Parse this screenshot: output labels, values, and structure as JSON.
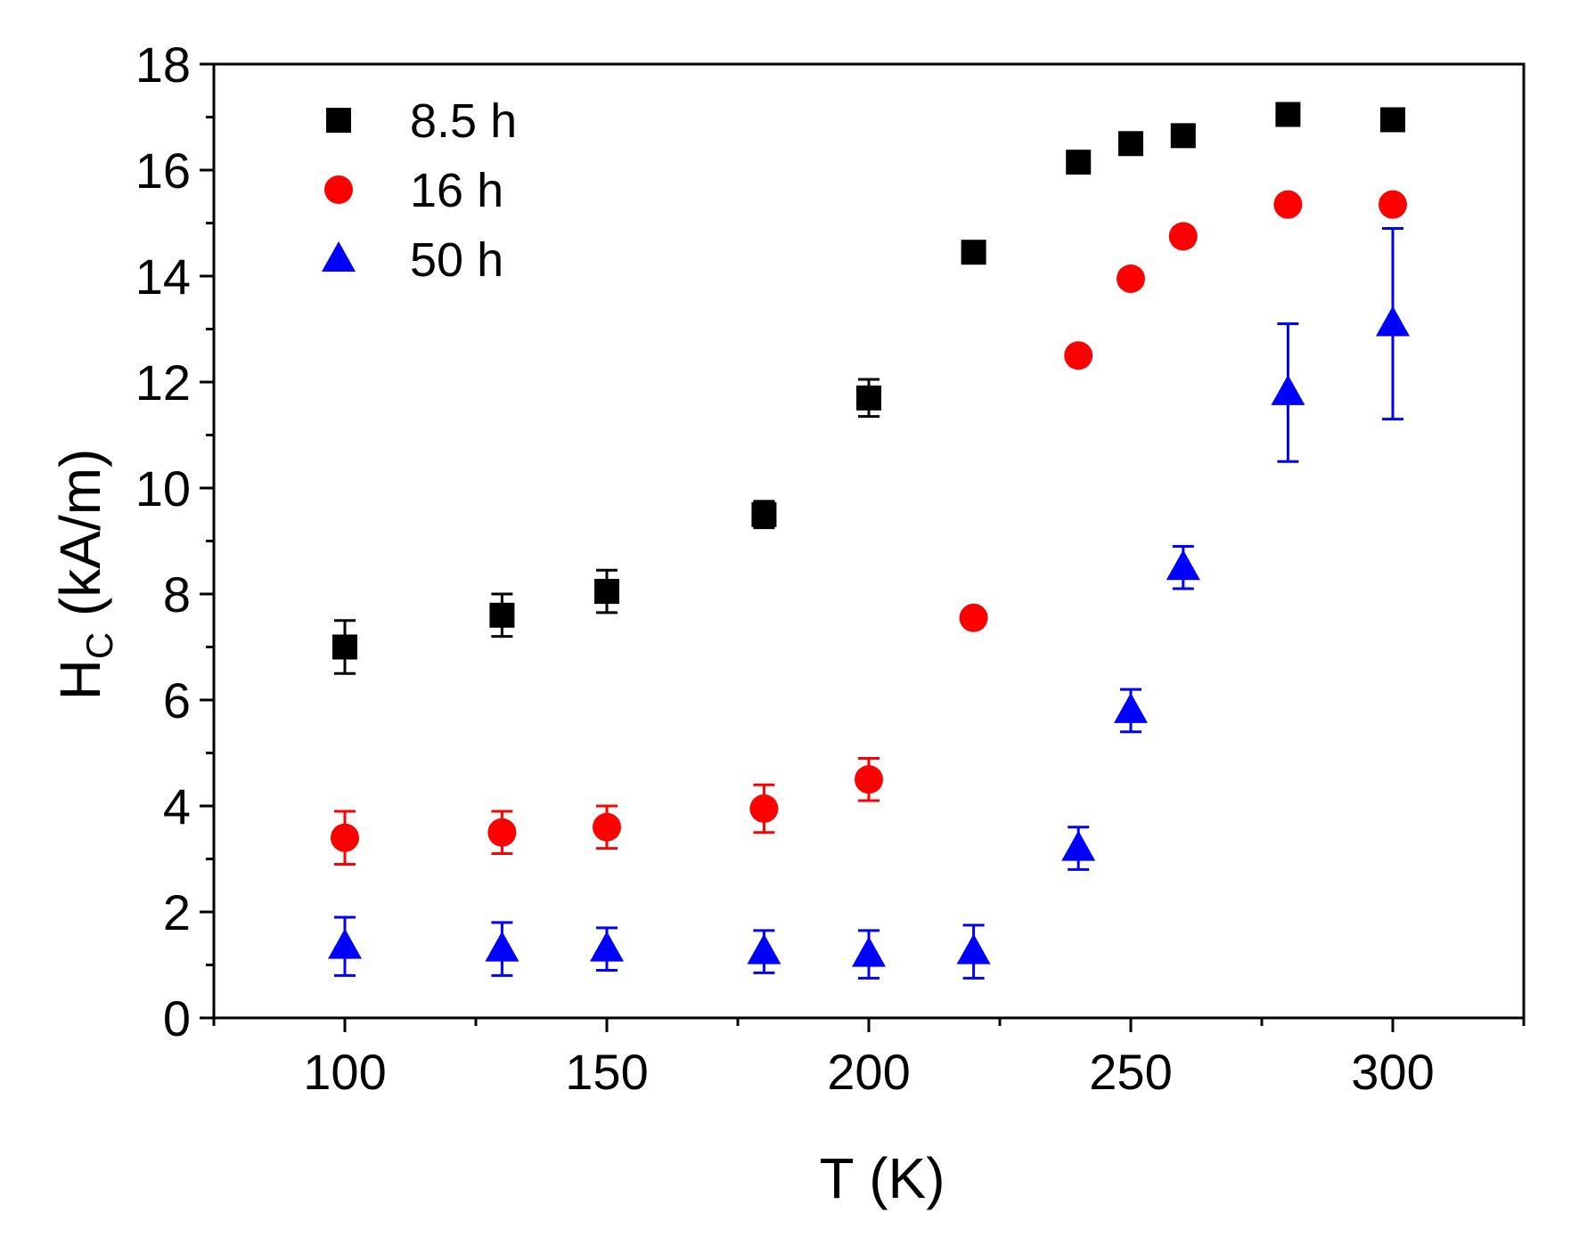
{
  "chart_data": {
    "type": "scatter",
    "xlabel": "T (K)",
    "ylabel_main": "H",
    "ylabel_sub": "C",
    "ylabel_units": " (kA/m)",
    "xlim": [
      75,
      325
    ],
    "ylim": [
      0,
      18
    ],
    "x_ticks": [
      100,
      150,
      200,
      250,
      300
    ],
    "x_minor_ticks": [
      75,
      125,
      175,
      225,
      275,
      325
    ],
    "y_ticks": [
      0,
      2,
      4,
      6,
      8,
      10,
      12,
      14,
      16,
      18
    ],
    "y_minor_ticks": [
      1,
      3,
      5,
      7,
      9,
      11,
      13,
      15,
      17
    ],
    "legend_position": "top-left",
    "series": [
      {
        "name": "8.5 h",
        "marker": "square",
        "color": "#000000",
        "points": [
          {
            "x": 100,
            "y": 7.0,
            "err": 0.5
          },
          {
            "x": 130,
            "y": 7.6,
            "err": 0.4
          },
          {
            "x": 150,
            "y": 8.05,
            "err": 0.4
          },
          {
            "x": 180,
            "y": 9.5,
            "err": 0.25
          },
          {
            "x": 200,
            "y": 11.7,
            "err": 0.35
          },
          {
            "x": 220,
            "y": 14.45,
            "err": 0.15
          },
          {
            "x": 240,
            "y": 16.15,
            "err": 0.15
          },
          {
            "x": 250,
            "y": 16.5,
            "err": 0.15
          },
          {
            "x": 260,
            "y": 16.65,
            "err": 0.15
          },
          {
            "x": 280,
            "y": 17.05,
            "err": 0.15
          },
          {
            "x": 300,
            "y": 16.95,
            "err": 0.15
          }
        ]
      },
      {
        "name": "16 h",
        "marker": "circle",
        "color": "#ff0000",
        "points": [
          {
            "x": 100,
            "y": 3.4,
            "err": 0.5
          },
          {
            "x": 130,
            "y": 3.5,
            "err": 0.4
          },
          {
            "x": 150,
            "y": 3.6,
            "err": 0.4
          },
          {
            "x": 180,
            "y": 3.95,
            "err": 0.45
          },
          {
            "x": 200,
            "y": 4.5,
            "err": 0.4
          },
          {
            "x": 220,
            "y": 7.55,
            "err": 0
          },
          {
            "x": 240,
            "y": 12.5,
            "err": 0
          },
          {
            "x": 250,
            "y": 13.95,
            "err": 0
          },
          {
            "x": 260,
            "y": 14.75,
            "err": 0
          },
          {
            "x": 280,
            "y": 15.35,
            "err": 0
          },
          {
            "x": 300,
            "y": 15.35,
            "err": 0
          }
        ]
      },
      {
        "name": "50 h",
        "marker": "triangle",
        "color": "#0000ff",
        "points": [
          {
            "x": 100,
            "y": 1.35,
            "err": 0.55
          },
          {
            "x": 130,
            "y": 1.3,
            "err": 0.5
          },
          {
            "x": 150,
            "y": 1.3,
            "err": 0.4
          },
          {
            "x": 180,
            "y": 1.25,
            "err": 0.4
          },
          {
            "x": 200,
            "y": 1.2,
            "err": 0.45
          },
          {
            "x": 220,
            "y": 1.25,
            "err": 0.5
          },
          {
            "x": 240,
            "y": 3.2,
            "err": 0.4
          },
          {
            "x": 250,
            "y": 5.8,
            "err": 0.4
          },
          {
            "x": 260,
            "y": 8.5,
            "err": 0.4
          },
          {
            "x": 280,
            "y": 11.8,
            "err": 1.3
          },
          {
            "x": 300,
            "y": 13.1,
            "err": 1.8
          }
        ]
      }
    ]
  }
}
